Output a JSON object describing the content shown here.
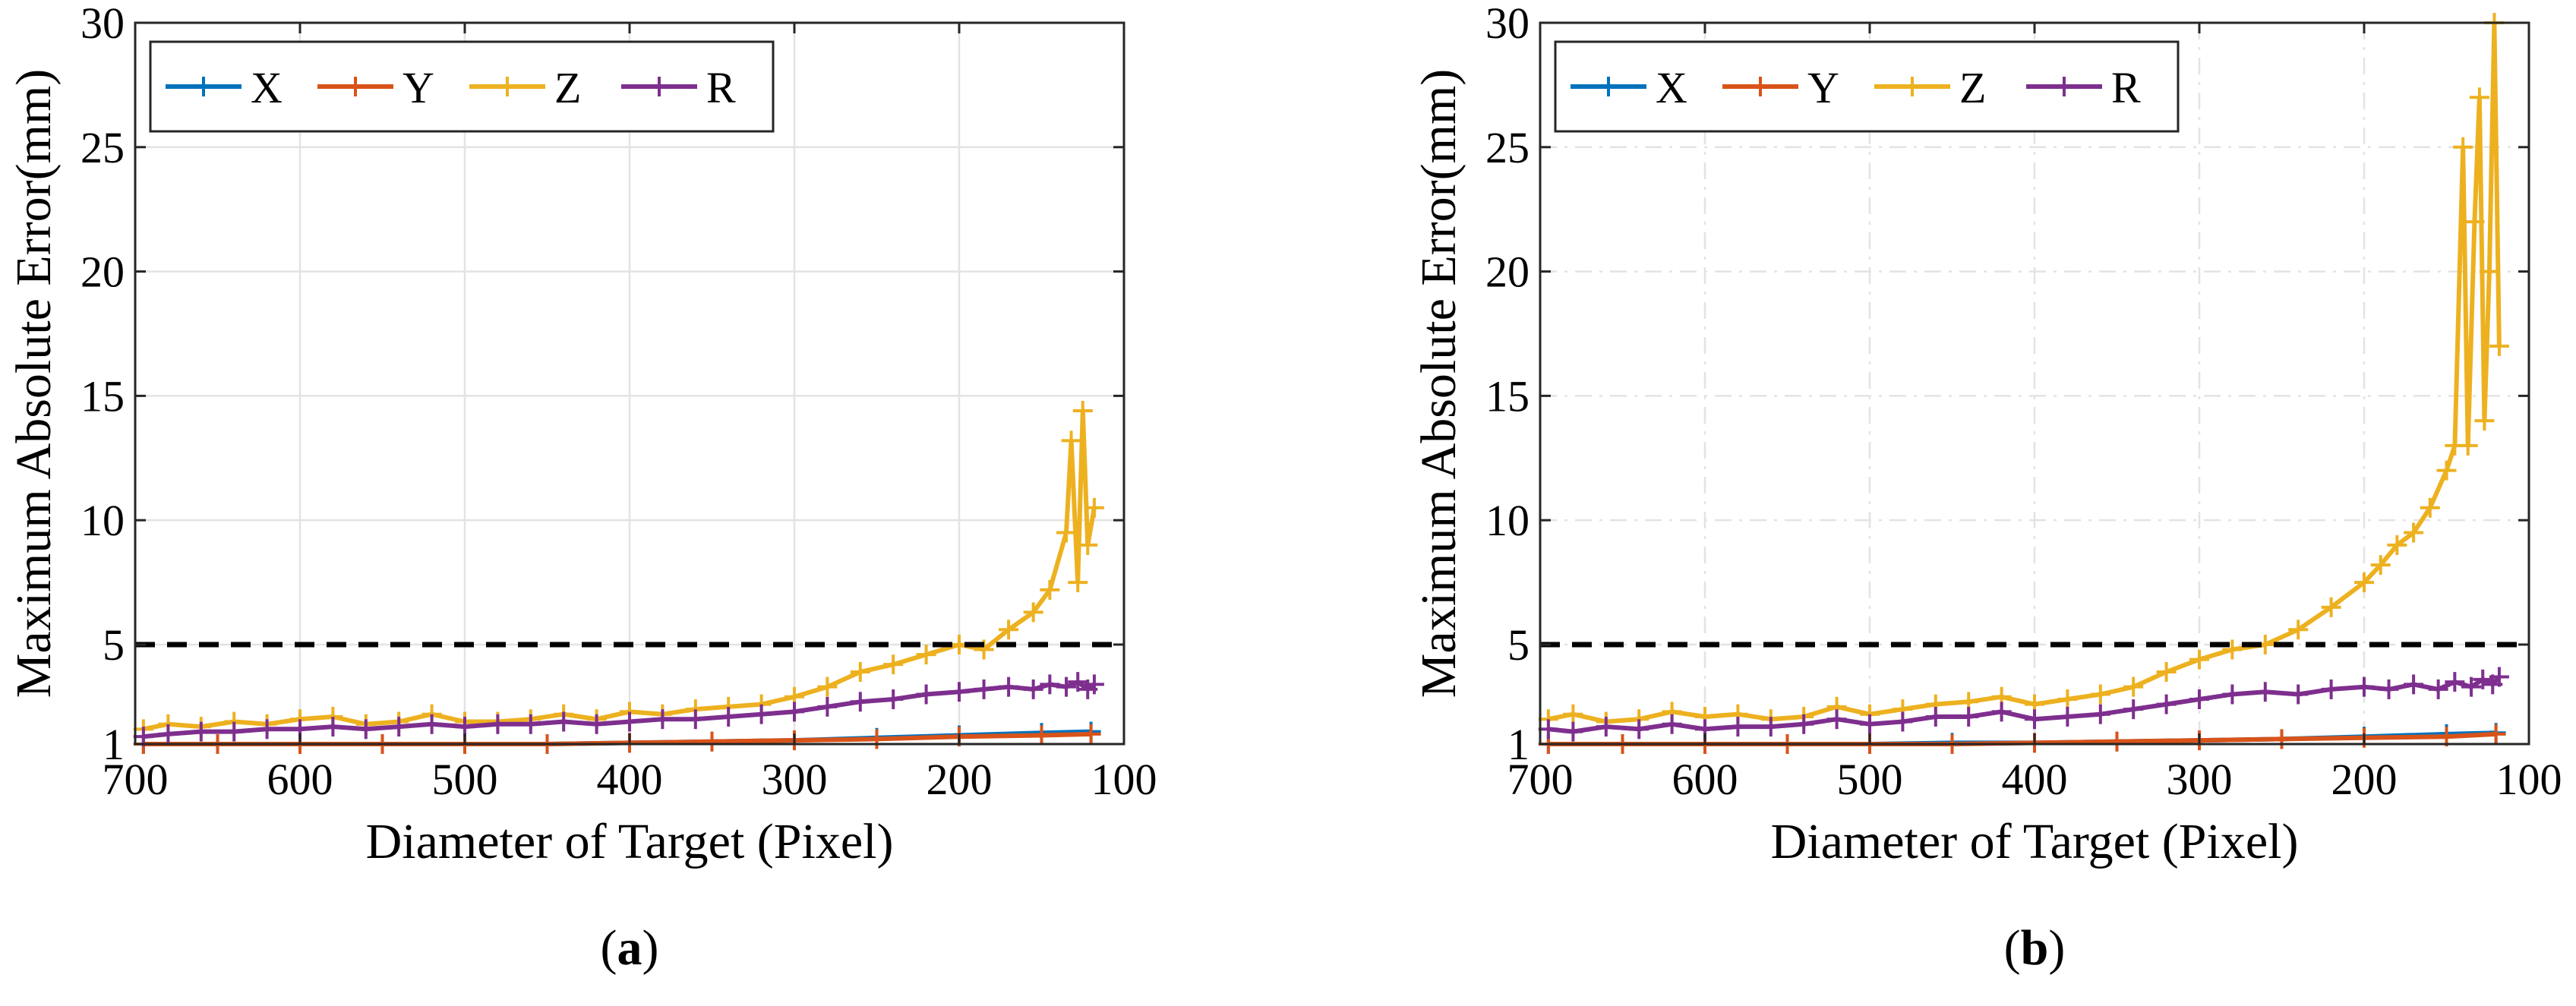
{
  "chart_data": [
    {
      "type": "line",
      "panel_label": "(a)",
      "panel_letter": "a",
      "xlabel": "Diameter of Target (Pixel)",
      "ylabel": "Maximum Absolute Error(mm)",
      "xlim": [
        700,
        100
      ],
      "x_reversed": true,
      "ylim": [
        1,
        30
      ],
      "xticks": [
        700,
        600,
        500,
        400,
        300,
        200,
        100
      ],
      "yticks": [
        1,
        5,
        10,
        15,
        20,
        25,
        30
      ],
      "grid": "solid",
      "legend": {
        "placement": "top-left",
        "orientation": "horizontal",
        "entries": [
          "X",
          "Y",
          "Z",
          "R"
        ]
      },
      "threshold": {
        "value": 5,
        "style": "dashed"
      },
      "series": [
        {
          "name": "X",
          "color": "#0072BD",
          "x": [
            695,
            650,
            600,
            550,
            500,
            450,
            400,
            350,
            300,
            250,
            200,
            150,
            120
          ],
          "y": [
            1.0,
            1.0,
            1.0,
            1.0,
            1.0,
            1.0,
            1.05,
            1.1,
            1.15,
            1.25,
            1.35,
            1.45,
            1.5
          ]
        },
        {
          "name": "Y",
          "color": "#D95319",
          "x": [
            695,
            650,
            600,
            550,
            500,
            450,
            400,
            350,
            300,
            250,
            200,
            150,
            120
          ],
          "y": [
            1.0,
            1.0,
            1.0,
            1.0,
            1.0,
            1.0,
            1.05,
            1.1,
            1.15,
            1.2,
            1.3,
            1.35,
            1.4
          ]
        },
        {
          "name": "Z",
          "color": "#EDB120",
          "x": [
            695,
            680,
            660,
            640,
            620,
            600,
            580,
            560,
            540,
            520,
            500,
            480,
            460,
            440,
            420,
            400,
            380,
            360,
            340,
            320,
            300,
            280,
            260,
            240,
            220,
            200,
            185,
            170,
            155,
            145,
            135,
            132,
            128,
            125,
            122,
            118
          ],
          "y": [
            1.6,
            1.8,
            1.7,
            1.9,
            1.8,
            2.0,
            2.1,
            1.8,
            1.9,
            2.2,
            1.9,
            1.9,
            2.0,
            2.2,
            2.0,
            2.3,
            2.2,
            2.4,
            2.5,
            2.6,
            2.9,
            3.3,
            3.9,
            4.2,
            4.6,
            5.0,
            4.8,
            5.6,
            6.3,
            7.2,
            9.5,
            13.2,
            7.5,
            14.4,
            9.0,
            10.5
          ]
        },
        {
          "name": "R",
          "color": "#7E2F8E",
          "x": [
            695,
            680,
            660,
            640,
            620,
            600,
            580,
            560,
            540,
            520,
            500,
            480,
            460,
            440,
            420,
            400,
            380,
            360,
            340,
            320,
            300,
            280,
            260,
            240,
            220,
            200,
            185,
            170,
            155,
            145,
            135,
            128,
            122,
            118
          ],
          "y": [
            1.3,
            1.4,
            1.5,
            1.5,
            1.6,
            1.6,
            1.7,
            1.6,
            1.7,
            1.8,
            1.7,
            1.8,
            1.8,
            1.9,
            1.8,
            1.9,
            2.0,
            2.0,
            2.1,
            2.2,
            2.3,
            2.5,
            2.7,
            2.8,
            3.0,
            3.1,
            3.2,
            3.3,
            3.2,
            3.4,
            3.3,
            3.5,
            3.2,
            3.4
          ]
        }
      ]
    },
    {
      "type": "line",
      "panel_label": "(b)",
      "panel_letter": "b",
      "xlabel": "Diameter of Target (Pixel)",
      "ylabel": "Maximum Absolute Error(mm)",
      "xlim": [
        700,
        100
      ],
      "x_reversed": true,
      "ylim": [
        1,
        30
      ],
      "xticks": [
        700,
        600,
        500,
        400,
        300,
        200,
        100
      ],
      "yticks": [
        1,
        5,
        10,
        15,
        20,
        25,
        30
      ],
      "grid": "dash-dot",
      "legend": {
        "placement": "top-left",
        "orientation": "horizontal",
        "entries": [
          "X",
          "Y",
          "Z",
          "R"
        ]
      },
      "threshold": {
        "value": 5,
        "style": "dashed"
      },
      "series": [
        {
          "name": "X",
          "color": "#0072BD",
          "x": [
            695,
            650,
            600,
            550,
            500,
            450,
            400,
            350,
            300,
            250,
            200,
            150,
            120
          ],
          "y": [
            1.0,
            1.0,
            1.0,
            1.0,
            1.0,
            1.05,
            1.05,
            1.1,
            1.15,
            1.2,
            1.3,
            1.4,
            1.45
          ]
        },
        {
          "name": "Y",
          "color": "#D95319",
          "x": [
            695,
            650,
            600,
            550,
            500,
            450,
            400,
            350,
            300,
            250,
            200,
            150,
            120
          ],
          "y": [
            1.0,
            1.0,
            1.0,
            1.0,
            1.0,
            1.0,
            1.05,
            1.1,
            1.15,
            1.2,
            1.25,
            1.3,
            1.4
          ]
        },
        {
          "name": "Z",
          "color": "#EDB120",
          "x": [
            695,
            680,
            660,
            640,
            620,
            600,
            580,
            560,
            540,
            520,
            500,
            480,
            460,
            440,
            420,
            400,
            380,
            360,
            340,
            320,
            300,
            280,
            260,
            240,
            220,
            200,
            190,
            180,
            170,
            160,
            150,
            145,
            140,
            137,
            133,
            130,
            127,
            124,
            121,
            118
          ],
          "y": [
            2.0,
            2.2,
            1.9,
            2.0,
            2.3,
            2.1,
            2.2,
            2.0,
            2.1,
            2.5,
            2.2,
            2.4,
            2.6,
            2.7,
            2.9,
            2.6,
            2.8,
            3.0,
            3.3,
            3.9,
            4.4,
            4.8,
            5.0,
            5.6,
            6.5,
            7.5,
            8.2,
            9.0,
            9.5,
            10.5,
            12.0,
            13.0,
            25.0,
            13.0,
            22.0,
            27.0,
            14.0,
            20.0,
            30.0,
            17.0
          ]
        },
        {
          "name": "R",
          "color": "#7E2F8E",
          "x": [
            695,
            680,
            660,
            640,
            620,
            600,
            580,
            560,
            540,
            520,
            500,
            480,
            460,
            440,
            420,
            400,
            380,
            360,
            340,
            320,
            300,
            280,
            260,
            240,
            220,
            200,
            185,
            170,
            155,
            145,
            135,
            128,
            122,
            118
          ],
          "y": [
            1.6,
            1.5,
            1.7,
            1.6,
            1.8,
            1.6,
            1.7,
            1.7,
            1.8,
            2.0,
            1.8,
            1.9,
            2.1,
            2.1,
            2.3,
            2.0,
            2.1,
            2.2,
            2.4,
            2.6,
            2.8,
            3.0,
            3.1,
            3.0,
            3.2,
            3.3,
            3.2,
            3.4,
            3.2,
            3.5,
            3.3,
            3.6,
            3.4,
            3.7
          ]
        }
      ]
    }
  ]
}
